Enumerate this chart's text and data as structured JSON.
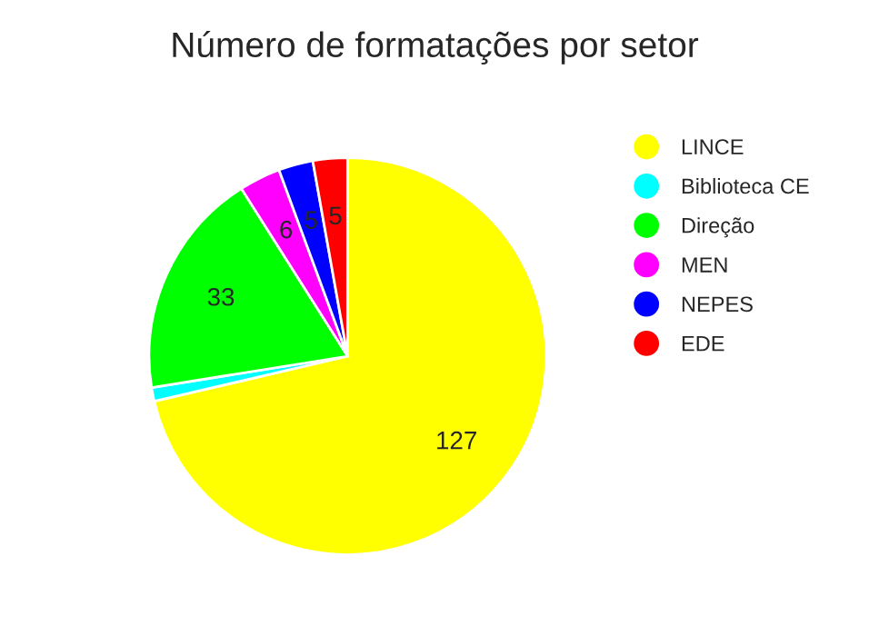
{
  "chart_data": {
    "type": "pie",
    "title": "Número de formatações por setor",
    "categories": [
      "LINCE",
      "Biblioteca CE",
      "Direção",
      "MEN",
      "NEPES",
      "EDE"
    ],
    "values": [
      127,
      2,
      33,
      6,
      5,
      5
    ],
    "colors": [
      "#ffff00",
      "#00ffff",
      "#00ff00",
      "#ff00ff",
      "#0000ff",
      "#ff0000"
    ],
    "value_labels": [
      "127",
      null,
      "33",
      "6",
      "5",
      "5"
    ],
    "legend": "right"
  }
}
